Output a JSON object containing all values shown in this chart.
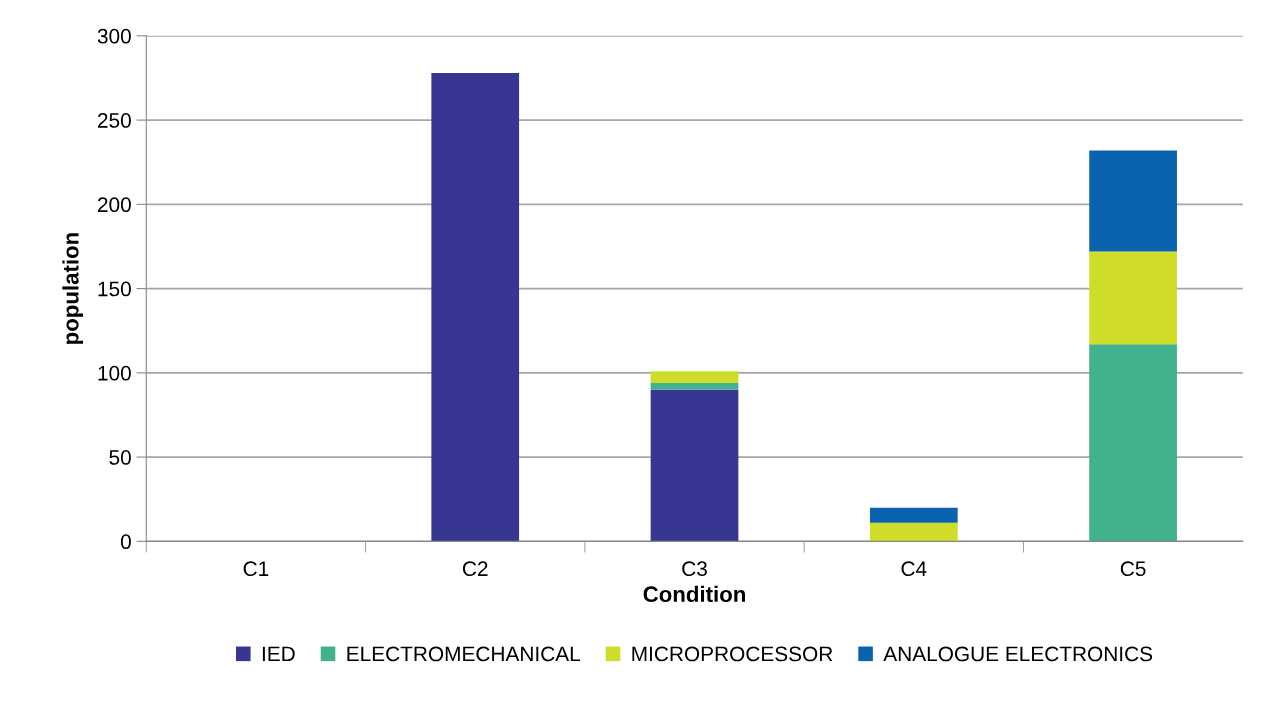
{
  "chart_data": {
    "type": "bar",
    "stacked": true,
    "xlabel": "Condition",
    "ylabel": "population",
    "categories": [
      "C1",
      "C2",
      "C3",
      "C4",
      "C5"
    ],
    "series": [
      {
        "name": "IED",
        "color": "#373692",
        "values": [
          0,
          278,
          90,
          0,
          0
        ]
      },
      {
        "name": "ELECTROMECHANICAL",
        "color": "#40b28d",
        "values": [
          0,
          0,
          4,
          0,
          117
        ]
      },
      {
        "name": "MICROPROCESSOR",
        "color": "#cfdc29",
        "values": [
          0,
          0,
          7,
          11,
          55
        ]
      },
      {
        "name": "ANALOGUE ELECTRONICS",
        "color": "#0a62ae",
        "values": [
          0,
          0,
          0,
          9,
          60
        ]
      }
    ],
    "ylim": [
      0,
      300
    ],
    "yticks": [
      0,
      50,
      100,
      150,
      200,
      250,
      300
    ],
    "grid": "y",
    "legend": "bottom"
  }
}
